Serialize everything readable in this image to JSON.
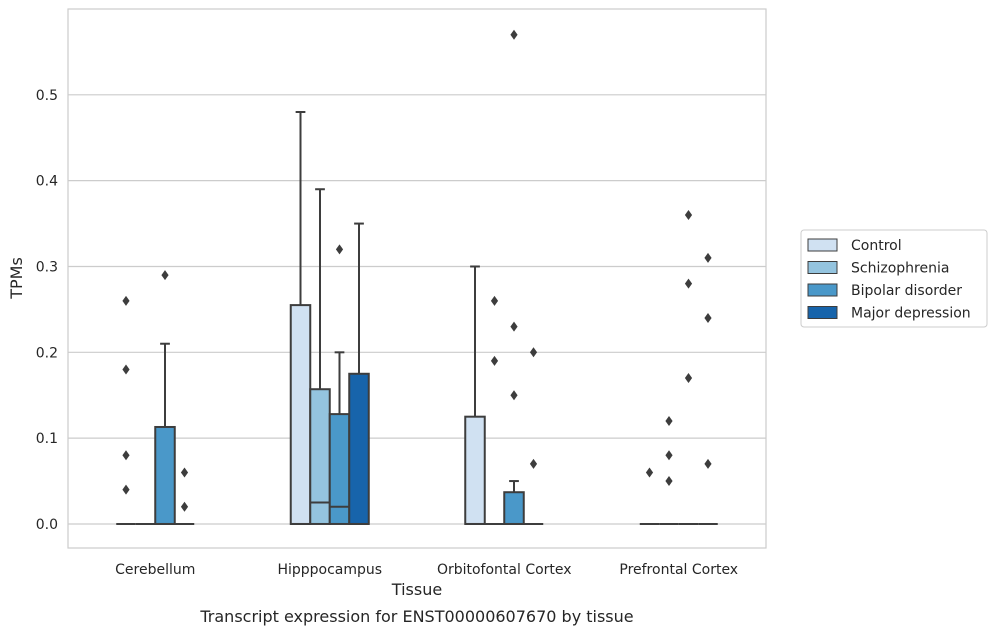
{
  "chart_data": {
    "type": "box",
    "xlabel": "Tissue",
    "ylabel": "TPMs",
    "caption": "Transcript expression for ENST00000607670 by tissue",
    "categories": [
      "Cerebellum",
      "Hipppocampus",
      "Orbitofontal Cortex",
      "Prefrontal Cortex"
    ],
    "ylim": [
      -0.028,
      0.6
    ],
    "yticks": [
      0.0,
      0.1,
      0.2,
      0.3,
      0.4,
      0.5
    ],
    "ytick_labels": [
      "0.0",
      "0.1",
      "0.2",
      "0.3",
      "0.4",
      "0.5"
    ],
    "grid": "horizontal",
    "legend_position": "right",
    "series": [
      {
        "name": "Control",
        "color": "#d0e1f2",
        "boxes": [
          {
            "q1": 0,
            "median": 0,
            "q3": 0,
            "whisker_low": 0,
            "whisker_high": 0,
            "outliers": [
              0.04,
              0.08,
              0.18,
              0.26
            ]
          },
          {
            "q1": 0,
            "median": 0,
            "q3": 0.255,
            "whisker_low": 0,
            "whisker_high": 0.48,
            "outliers": []
          },
          {
            "q1": 0,
            "median": 0,
            "q3": 0.125,
            "whisker_low": 0,
            "whisker_high": 0.3,
            "outliers": []
          },
          {
            "q1": 0,
            "median": 0,
            "q3": 0,
            "whisker_low": 0,
            "whisker_high": 0,
            "outliers": [
              0.06
            ]
          }
        ]
      },
      {
        "name": "Schizophrenia",
        "color": "#94c4df",
        "boxes": [
          {
            "q1": 0,
            "median": 0,
            "q3": 0,
            "whisker_low": 0,
            "whisker_high": 0,
            "outliers": []
          },
          {
            "q1": 0,
            "median": 0.025,
            "q3": 0.157,
            "whisker_low": 0,
            "whisker_high": 0.39,
            "outliers": []
          },
          {
            "q1": 0,
            "median": 0,
            "q3": 0,
            "whisker_low": 0,
            "whisker_high": 0,
            "outliers": [
              0.19,
              0.26
            ]
          },
          {
            "q1": 0,
            "median": 0,
            "q3": 0,
            "whisker_low": 0,
            "whisker_high": 0,
            "outliers": [
              0.05,
              0.08,
              0.12
            ]
          }
        ]
      },
      {
        "name": "Bipolar disorder",
        "color": "#4a98c9",
        "boxes": [
          {
            "q1": 0,
            "median": 0,
            "q3": 0.113,
            "whisker_low": 0,
            "whisker_high": 0.21,
            "outliers": [
              0.29
            ]
          },
          {
            "q1": 0,
            "median": 0.02,
            "q3": 0.128,
            "whisker_low": 0,
            "whisker_high": 0.2,
            "outliers": [
              0.32
            ]
          },
          {
            "q1": 0,
            "median": 0,
            "q3": 0.037,
            "whisker_low": 0,
            "whisker_high": 0.05,
            "outliers": [
              0.15,
              0.23,
              0.57
            ]
          },
          {
            "q1": 0,
            "median": 0,
            "q3": 0,
            "whisker_low": 0,
            "whisker_high": 0,
            "outliers": [
              0.17,
              0.28,
              0.36
            ]
          }
        ]
      },
      {
        "name": "Major depression",
        "color": "#1764ab",
        "boxes": [
          {
            "q1": 0,
            "median": 0,
            "q3": 0,
            "whisker_low": 0,
            "whisker_high": 0,
            "outliers": [
              0.02,
              0.06
            ]
          },
          {
            "q1": 0,
            "median": 0,
            "q3": 0.175,
            "whisker_low": 0,
            "whisker_high": 0.35,
            "outliers": []
          },
          {
            "q1": 0,
            "median": 0,
            "q3": 0,
            "whisker_low": 0,
            "whisker_high": 0,
            "outliers": [
              0.07,
              0.2
            ]
          },
          {
            "q1": 0,
            "median": 0,
            "q3": 0,
            "whisker_low": 0,
            "whisker_high": 0,
            "outliers": [
              0.07,
              0.24,
              0.31
            ]
          }
        ]
      }
    ]
  }
}
